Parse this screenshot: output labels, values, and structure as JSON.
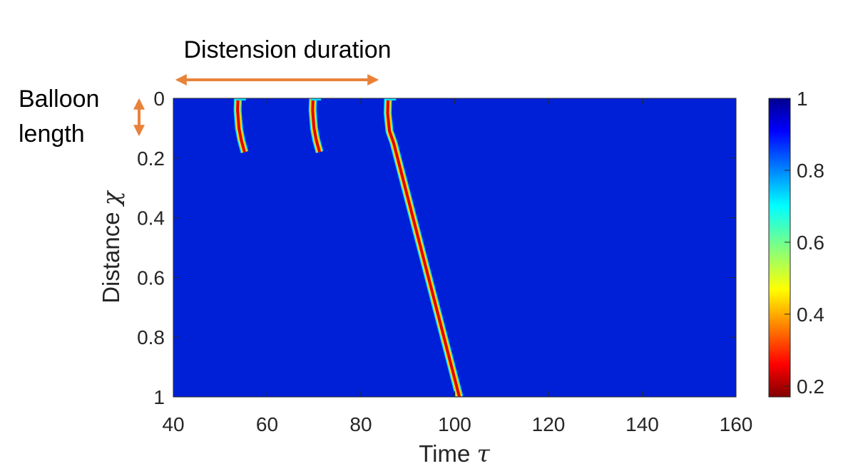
{
  "chart_data": {
    "type": "heatmap",
    "title": "",
    "xlabel": "Time",
    "xlabel_symbol": "τ",
    "ylabel": "Distance",
    "ylabel_symbol": "χ",
    "xlim": [
      40,
      160
    ],
    "ylim": [
      0,
      1
    ],
    "y_reversed": true,
    "xticks": [
      "40",
      "60",
      "80",
      "100",
      "120",
      "140",
      "160"
    ],
    "yticks": [
      "0",
      "0.2",
      "0.4",
      "0.6",
      "0.8",
      "1"
    ],
    "colorbar": {
      "colormap": "jet",
      "range": [
        0.17,
        1
      ],
      "ticks": [
        "0.2",
        "0.4",
        "0.6",
        "0.8",
        "1"
      ]
    },
    "background_value": 1,
    "features": [
      {
        "kind": "short-pulse",
        "t_start": 53.5,
        "t_end": 55.5,
        "x_start": 0.0,
        "x_end": 0.18,
        "min_value": 0.2
      },
      {
        "kind": "short-pulse",
        "t_start": 69.5,
        "t_end": 71.5,
        "x_start": 0.0,
        "x_end": 0.18,
        "min_value": 0.2
      },
      {
        "kind": "propagating-wave",
        "t_start": 85.5,
        "t_knee": 87,
        "x_knee": 0.15,
        "t_end": 101,
        "x_end": 1.0,
        "min_value": 0.2
      }
    ],
    "annotations": [
      {
        "text": "Distension duration",
        "arrow": "horizontal",
        "from_t": 40,
        "to_t": 84
      },
      {
        "text": "Balloon\nlength",
        "arrow": "vertical",
        "from_x": 0.0,
        "to_x": 0.13
      }
    ]
  },
  "colors": {
    "annotation_arrow": "#E8823A",
    "axis": "#262626"
  },
  "annotations": {
    "distension": "Distension duration",
    "balloon_line1": "Balloon",
    "balloon_line2": "length"
  }
}
